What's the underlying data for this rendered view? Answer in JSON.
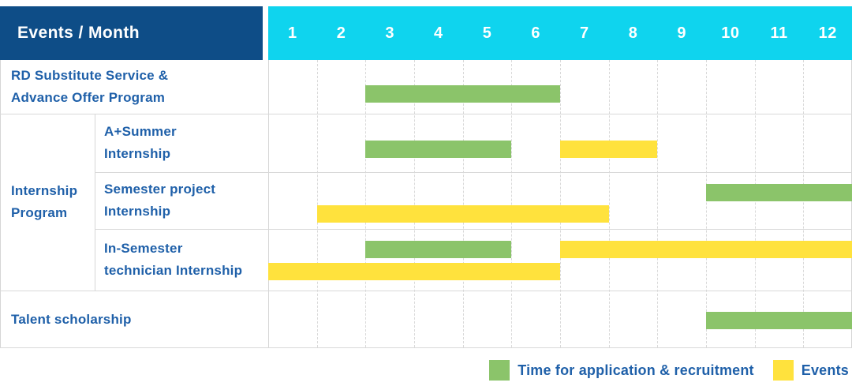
{
  "header": {
    "events_label": "Events / Month",
    "months": [
      "1",
      "2",
      "3",
      "4",
      "5",
      "6",
      "7",
      "8",
      "9",
      "10",
      "11",
      "12"
    ]
  },
  "colors": {
    "header_bg": "#0e4d87",
    "months_bg": "#0fd4ee",
    "label_text": "#1f60a9",
    "green": "#8bc46a",
    "yellow": "#ffe23d",
    "grid": "#d9d9d9"
  },
  "legend": [
    {
      "label": "Time for application & recruitment",
      "color": "green"
    },
    {
      "label": "Events",
      "color": "yellow"
    }
  ],
  "chart_data": {
    "type": "bar",
    "subtype": "gantt-schedule",
    "title": "Events / Month",
    "x_axis": {
      "label": "Month",
      "ticks": [
        "1",
        "2",
        "3",
        "4",
        "5",
        "6",
        "7",
        "8",
        "9",
        "10",
        "11",
        "12"
      ],
      "range": [
        1,
        12
      ]
    },
    "grid": "on",
    "legend_position": "bottom-right",
    "series_legend": [
      {
        "name": "Time for application & recruitment",
        "color": "#8bc46a"
      },
      {
        "name": "Events",
        "color": "#ffe23d"
      }
    ],
    "group_label_lines": [
      "Internship",
      "Program"
    ],
    "tasks": [
      {
        "label_lines": [
          "RD Substitute Service &",
          "Advance Offer Program"
        ],
        "group": null,
        "bars": [
          {
            "series": "Time for application & recruitment",
            "color": "green",
            "start_month": 3,
            "end_month": 6,
            "lane": 0
          }
        ]
      },
      {
        "label_lines": [
          "A+Summer",
          "Internship"
        ],
        "group": "Internship Program",
        "bars": [
          {
            "series": "Time for application & recruitment",
            "color": "green",
            "start_month": 3,
            "end_month": 5,
            "lane": 0
          },
          {
            "series": "Events",
            "color": "yellow",
            "start_month": 7,
            "end_month": 8,
            "lane": 0
          }
        ]
      },
      {
        "label_lines": [
          "Semester project",
          "Internship"
        ],
        "group": "Internship Program",
        "bars": [
          {
            "series": "Time for application & recruitment",
            "color": "green",
            "start_month": 10,
            "end_month": 12,
            "lane": 0
          },
          {
            "series": "Events",
            "color": "yellow",
            "start_month": 2,
            "end_month": 7,
            "lane": 1
          }
        ]
      },
      {
        "label_lines": [
          "In-Semester",
          "technician Internship"
        ],
        "group": "Internship Program",
        "bars": [
          {
            "series": "Time for application & recruitment",
            "color": "green",
            "start_month": 3,
            "end_month": 5,
            "lane": 0
          },
          {
            "series": "Events",
            "color": "yellow",
            "start_month": 7,
            "end_month": 12,
            "lane": 0
          },
          {
            "series": "Events",
            "color": "yellow",
            "start_month": 1,
            "end_month": 6,
            "lane": 1
          }
        ]
      },
      {
        "label_lines": [
          "Talent scholarship"
        ],
        "group": null,
        "bars": [
          {
            "series": "Time for application & recruitment",
            "color": "green",
            "start_month": 10,
            "end_month": 12,
            "lane": 0
          }
        ]
      }
    ]
  }
}
